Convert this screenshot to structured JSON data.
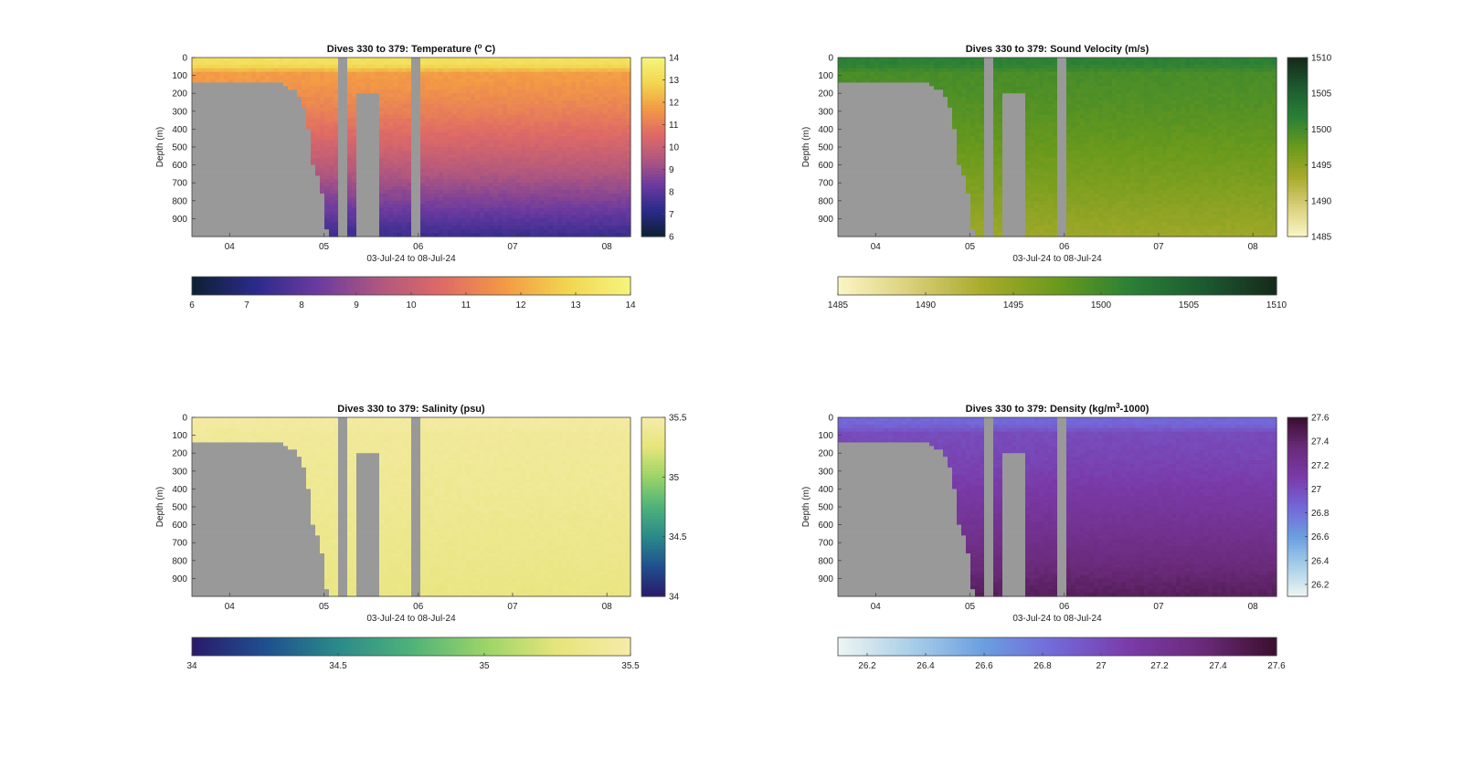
{
  "chart_data": [
    {
      "type": "heatmap",
      "title_prefix": "Dives 330 to 379: Temperature (",
      "title_sup": "o",
      "title_suffix": " C)",
      "xlabel": "03-Jul-24 to 08-Jul-24",
      "ylabel": "Depth (m)",
      "xticks": [
        "04",
        "05",
        "06",
        "07",
        "08"
      ],
      "yticks": [
        "0",
        "100",
        "200",
        "300",
        "400",
        "500",
        "600",
        "700",
        "800",
        "900"
      ],
      "xlim_days": [
        3.6,
        8.25
      ],
      "ylim": [
        0,
        1000
      ],
      "colorbar_ticks": [
        "6",
        "7",
        "8",
        "9",
        "10",
        "11",
        "12",
        "13",
        "14"
      ],
      "horizontal_colorbar_ticks": [
        "6",
        "7",
        "8",
        "9",
        "10",
        "11",
        "12",
        "13",
        "14"
      ],
      "clim": [
        6,
        14
      ],
      "surface_value": 13.2,
      "deep_value": 7.4,
      "colors": [
        "#0c2032",
        "#2a2a8a",
        "#6b3aa0",
        "#b0577f",
        "#df6a66",
        "#f39a45",
        "#f2d64f",
        "#f5f57e"
      ]
    },
    {
      "type": "heatmap",
      "title": "Dives 330 to 379: Sound Velocity (m/s)",
      "xlabel": "03-Jul-24 to 08-Jul-24",
      "ylabel": "Depth (m)",
      "xticks": [
        "04",
        "05",
        "06",
        "07",
        "08"
      ],
      "yticks": [
        "0",
        "100",
        "200",
        "300",
        "400",
        "500",
        "600",
        "700",
        "800",
        "900"
      ],
      "xlim_days": [
        3.6,
        8.25
      ],
      "ylim": [
        0,
        1000
      ],
      "colorbar_ticks": [
        "1485",
        "1490",
        "1495",
        "1500",
        "1505",
        "1510"
      ],
      "horizontal_colorbar_ticks": [
        "1485",
        "1490",
        "1495",
        "1500",
        "1505",
        "1510"
      ],
      "clim": [
        1485,
        1510
      ],
      "surface_value": 1501.5,
      "deep_value": 1494,
      "colors": [
        "#fbf6c4",
        "#d9cf7a",
        "#a8aa2a",
        "#6a9a1c",
        "#2a8036",
        "#1c5a30",
        "#16291a"
      ]
    },
    {
      "type": "heatmap",
      "title": "Dives 330 to 379: Salinity (psu)",
      "xlabel": "03-Jul-24 to 08-Jul-24",
      "ylabel": "Depth (m)",
      "xticks": [
        "04",
        "05",
        "06",
        "07",
        "08"
      ],
      "yticks": [
        "0",
        "100",
        "200",
        "300",
        "400",
        "500",
        "600",
        "700",
        "800",
        "900"
      ],
      "xlim_days": [
        3.6,
        8.25
      ],
      "ylim": [
        0,
        1000
      ],
      "colorbar_ticks": [
        "34",
        "34.5",
        "35",
        "35.5"
      ],
      "horizontal_colorbar_ticks": [
        "34",
        "34.5",
        "35",
        "35.5"
      ],
      "clim": [
        34,
        35.5
      ],
      "surface_value": 35.45,
      "deep_value": 35.3,
      "colors": [
        "#2a1a6a",
        "#1f4f8f",
        "#2a8a8a",
        "#4fb27a",
        "#9ad468",
        "#e6e57a",
        "#f6ebaa"
      ]
    },
    {
      "type": "heatmap",
      "title_prefix": "Dives 330 to 379: Density (kg/m",
      "title_sup": "3",
      "title_suffix": "-1000)",
      "xlabel": "03-Jul-24 to 08-Jul-24",
      "ylabel": "Depth (m)",
      "xticks": [
        "04",
        "05",
        "06",
        "07",
        "08"
      ],
      "yticks": [
        "0",
        "100",
        "200",
        "300",
        "400",
        "500",
        "600",
        "700",
        "800",
        "900"
      ],
      "xlim_days": [
        3.6,
        8.25
      ],
      "ylim": [
        0,
        1000
      ],
      "colorbar_ticks": [
        "26.2",
        "26.4",
        "26.6",
        "26.8",
        "27",
        "27.2",
        "27.4",
        "27.6"
      ],
      "horizontal_colorbar_ticks": [
        "26.2",
        "26.4",
        "26.6",
        "26.8",
        "27",
        "27.2",
        "27.4",
        "27.6"
      ],
      "clim": [
        26.1,
        27.6
      ],
      "surface_value": 26.85,
      "deep_value": 27.45,
      "colors": [
        "#eef5f3",
        "#a9cfe8",
        "#6a9ee0",
        "#7466d8",
        "#7a3aa8",
        "#6a2a7a",
        "#3a0e2e"
      ]
    }
  ],
  "land_color": "#999999"
}
